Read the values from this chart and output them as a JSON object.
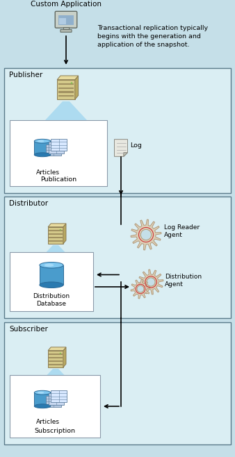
{
  "bg_color": "#c5dfe8",
  "box_bg": "#daeef3",
  "box_edge": "#5a7a8a",
  "white_box_bg": "#ffffff",
  "white_box_edge": "#8a9aaa",
  "text_color": "#000000",
  "arrow_color": "#000000",
  "title_custom_app": "Custom Application",
  "annotation_text": "Transactional replication typically\nbegins with the generation and\napplication of the snapshot.",
  "publisher_label": "Publisher",
  "distributor_label": "Distributor",
  "subscriber_label": "Subscriber",
  "articles_label": "Articles",
  "publication_label": "Publication",
  "log_label": "Log",
  "log_reader_label": "Log Reader\nAgent",
  "distribution_agent_label": "Distribution\nAgent",
  "dist_db_label": "Distribution\nDatabase",
  "subscription_label": "Subscription",
  "figw": 3.38,
  "figh": 6.58,
  "dpi": 100
}
